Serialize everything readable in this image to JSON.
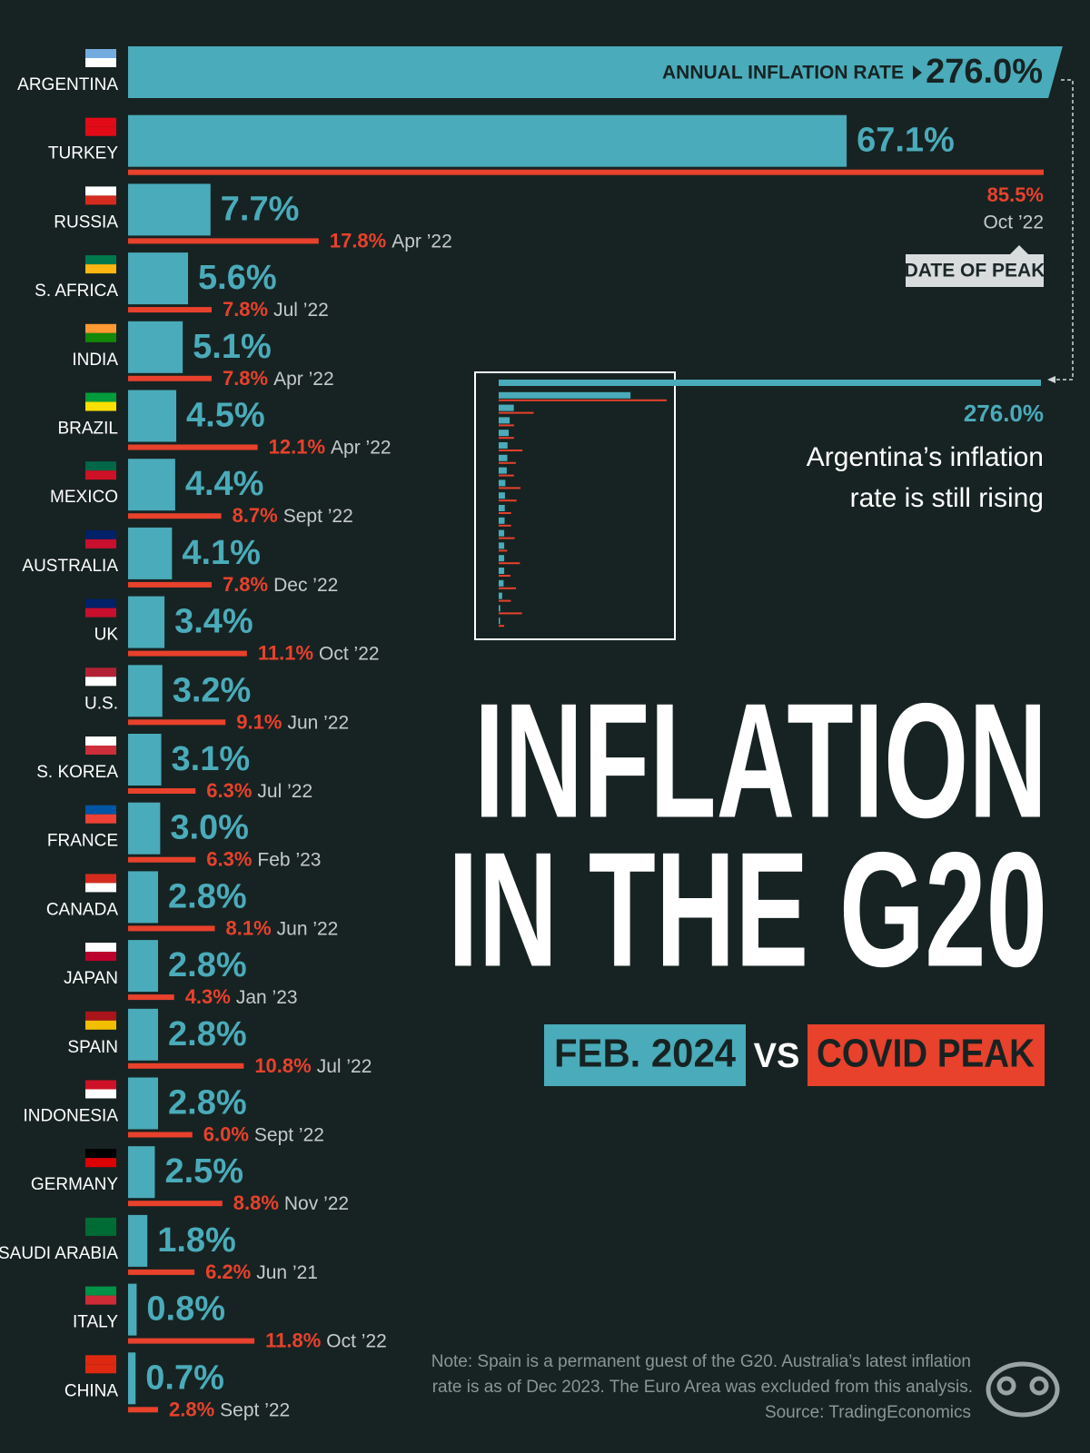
{
  "chart_data": {
    "type": "bar",
    "orientation": "horizontal",
    "title": [
      "INFLATION",
      "IN THE G20"
    ],
    "categories": [
      "ARGENTINA",
      "TURKEY",
      "RUSSIA",
      "S. AFRICA",
      "INDIA",
      "BRAZIL",
      "MEXICO",
      "AUSTRALIA",
      "UK",
      "U.S.",
      "S. KOREA",
      "FRANCE",
      "CANADA",
      "JAPAN",
      "SPAIN",
      "INDONESIA",
      "GERMANY",
      "SAUDI ARABIA",
      "ITALY",
      "CHINA"
    ],
    "series": [
      {
        "name": "FEB. 2024",
        "color": "#4aabba",
        "values": [
          276.0,
          67.1,
          7.7,
          5.6,
          5.1,
          4.5,
          4.4,
          4.1,
          3.4,
          3.2,
          3.1,
          3.0,
          2.8,
          2.8,
          2.8,
          2.8,
          2.5,
          1.8,
          0.8,
          0.7
        ],
        "value_labels": [
          "276.0%",
          "67.1%",
          "7.7%",
          "5.6%",
          "5.1%",
          "4.5%",
          "4.4%",
          "4.1%",
          "3.4%",
          "3.2%",
          "3.1%",
          "3.0%",
          "2.8%",
          "2.8%",
          "2.8%",
          "2.8%",
          "2.5%",
          "1.8%",
          "0.8%",
          "0.7%"
        ]
      },
      {
        "name": "COVID PEAK",
        "color": "#e8412c",
        "values": [
          null,
          85.5,
          17.8,
          7.8,
          7.8,
          12.1,
          8.7,
          7.8,
          11.1,
          9.1,
          6.3,
          6.3,
          8.1,
          4.3,
          10.8,
          6.0,
          8.8,
          6.2,
          11.8,
          2.8
        ],
        "value_labels": [
          null,
          "85.5%",
          "17.8%",
          "7.8%",
          "7.8%",
          "12.1%",
          "8.7%",
          "7.8%",
          "11.1%",
          "9.1%",
          "6.3%",
          "6.3%",
          "8.1%",
          "4.3%",
          "10.8%",
          "6.0%",
          "8.8%",
          "6.2%",
          "11.8%",
          "2.8%"
        ],
        "peak_dates": [
          null,
          "Oct ’22",
          "Apr ’22",
          "Jul ’22",
          "Apr ’22",
          "Apr ’22",
          "Sept ’22",
          "Dec ’22",
          "Oct ’22",
          "Jun ’22",
          "Jul ’22",
          "Feb ’23",
          "Jun ’22",
          "Jan ’23",
          "Jul ’22",
          "Sept ’22",
          "Nov ’22",
          "Jun ’21",
          "Oct ’22",
          "Sept ’22"
        ]
      }
    ],
    "xlim": [
      0,
      85.5
    ],
    "rate_label": "ANNUAL INFLATION RATE",
    "peak_label": "DATE OF PEAK",
    "annotation": [
      "Argentina’s inflation",
      "rate is still rising"
    ],
    "legend_separator": "VS",
    "note": [
      "Note: Spain is a permanent guest of the G20. Australia’s latest inflation",
      "rate is as of Dec 2023. The Euro Area was excluded from this analysis.",
      "Source: TradingEconomics"
    ]
  }
}
